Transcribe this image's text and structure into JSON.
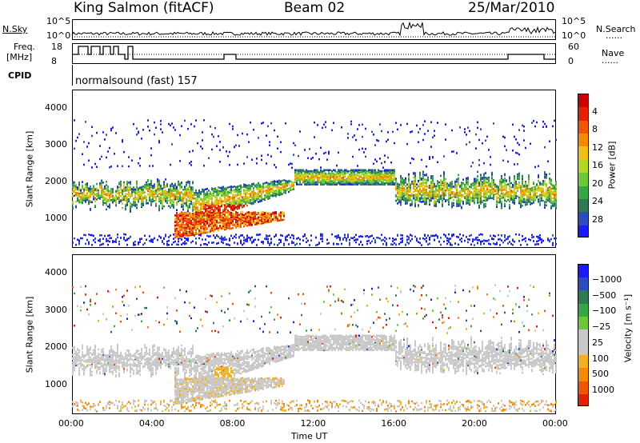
{
  "header": {
    "station": "King Salmon (fitACF)",
    "beam": "Beam 02",
    "date": "25/Mar/2010"
  },
  "labels": {
    "nsky": "N.Sky",
    "nsearch": "N.Search",
    "freq": "Freq.",
    "mhz": "[MHz]",
    "nave": "Nave",
    "cpid": "CPID",
    "cpid_value": "normalsound (fast) 157",
    "dots": "......"
  },
  "ticks": {
    "nsky": [
      "10^5",
      "10^0"
    ],
    "nsearch": [
      "10^5",
      "10^0"
    ],
    "freq": [
      "18",
      "8"
    ],
    "nave": [
      "60",
      "0"
    ]
  },
  "colors": {
    "power": [
      "#1a1aff",
      "#2a4dbb",
      "#2d7a55",
      "#35a845",
      "#6dc832",
      "#b0d820",
      "#f0c010",
      "#f58a00",
      "#f25500",
      "#e62000",
      "#cc0000"
    ],
    "velocity": [
      "#1a1aff",
      "#2a4dbb",
      "#2d7a55",
      "#35a845",
      "#6dc832",
      "#c8c8c8",
      "#c8c8c8",
      "#f2b020",
      "#f58a00",
      "#f25500",
      "#e62000"
    ]
  },
  "chart_data": [
    {
      "type": "heatmap",
      "name": "power",
      "ylabel": "Slant Range [km]",
      "yticks": [
        "1000",
        "2000",
        "3000",
        "4000"
      ],
      "ylim": [
        200,
        4500
      ],
      "colorbar_label": "Power [dB]",
      "colorbar_ticks": [
        "4",
        "8",
        "12",
        "16",
        "20",
        "24",
        "28"
      ],
      "clim": [
        0,
        30
      ]
    },
    {
      "type": "heatmap",
      "name": "velocity",
      "ylabel": "Slant Range [km]",
      "yticks": [
        "1000",
        "2000",
        "3000",
        "4000"
      ],
      "ylim": [
        200,
        4500
      ],
      "colorbar_label": "Velocity [m s⁻¹]",
      "colorbar_ticks": [
        "1000",
        "500",
        "100",
        "25",
        "−25",
        "−100",
        "−500",
        "−1000"
      ],
      "xlabel": "Time UT",
      "xticks": [
        "00:00",
        "04:00",
        "08:00",
        "12:00",
        "16:00",
        "20:00",
        "00:00"
      ],
      "xlim": [
        0,
        24
      ]
    }
  ]
}
